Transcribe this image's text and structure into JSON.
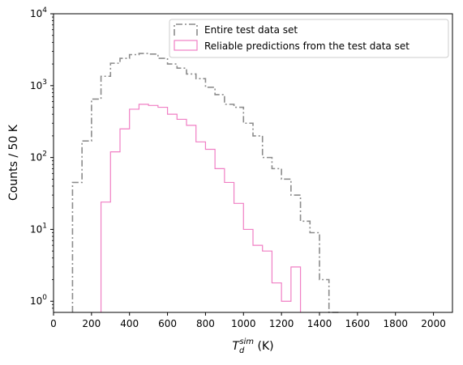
{
  "chart_data": {
    "type": "histogram",
    "xlabel_base": "T",
    "xlabel_sub": "d",
    "xlabel_sup": "sim",
    "xlabel_unit": " (K)",
    "ylabel": "Counts / 50 K",
    "xlim": [
      0,
      2100
    ],
    "ylim": [
      0.7,
      10000
    ],
    "yscale": "log",
    "xticks": [
      0,
      200,
      400,
      600,
      800,
      1000,
      1200,
      1400,
      1600,
      1800,
      2000
    ],
    "xtick_labels": [
      "0",
      "200",
      "400",
      "600",
      "800",
      "1000",
      "1200",
      "1400",
      "1600",
      "1800",
      "2000"
    ],
    "yticks": [
      1,
      10,
      100,
      1000,
      10000
    ],
    "ytick_labels": [
      {
        "base": "10",
        "exp": "0"
      },
      {
        "base": "10",
        "exp": "1"
      },
      {
        "base": "10",
        "exp": "2"
      },
      {
        "base": "10",
        "exp": "3"
      },
      {
        "base": "10",
        "exp": "4"
      }
    ],
    "grid": false,
    "legend_position": "upper-right",
    "bin_width": 50,
    "series": [
      {
        "name": "Entire test data set",
        "color": "#8c8c8c",
        "line_style": "dashdot",
        "bin_starts": [
          100,
          150,
          200,
          250,
          300,
          350,
          400,
          450,
          500,
          550,
          600,
          650,
          700,
          750,
          800,
          850,
          900,
          950,
          1000,
          1050,
          1100,
          1150,
          1200,
          1250,
          1300,
          1350,
          1400,
          1450
        ],
        "counts": [
          45,
          170,
          650,
          1350,
          2050,
          2400,
          2700,
          2800,
          2750,
          2400,
          2000,
          1750,
          1450,
          1250,
          950,
          750,
          550,
          500,
          300,
          200,
          100,
          70,
          50,
          30,
          13,
          9,
          2,
          0
        ]
      },
      {
        "name": "Reliable predictions from the test data set",
        "color": "#f07fc4",
        "line_style": "solid",
        "bin_starts": [
          250,
          300,
          350,
          400,
          450,
          500,
          550,
          600,
          650,
          700,
          750,
          800,
          850,
          900,
          950,
          1000,
          1050,
          1100,
          1150,
          1200,
          1250
        ],
        "counts": [
          24,
          120,
          250,
          470,
          550,
          530,
          500,
          400,
          340,
          280,
          165,
          130,
          70,
          45,
          23,
          10,
          6,
          5,
          1.8,
          1,
          3
        ]
      }
    ]
  }
}
